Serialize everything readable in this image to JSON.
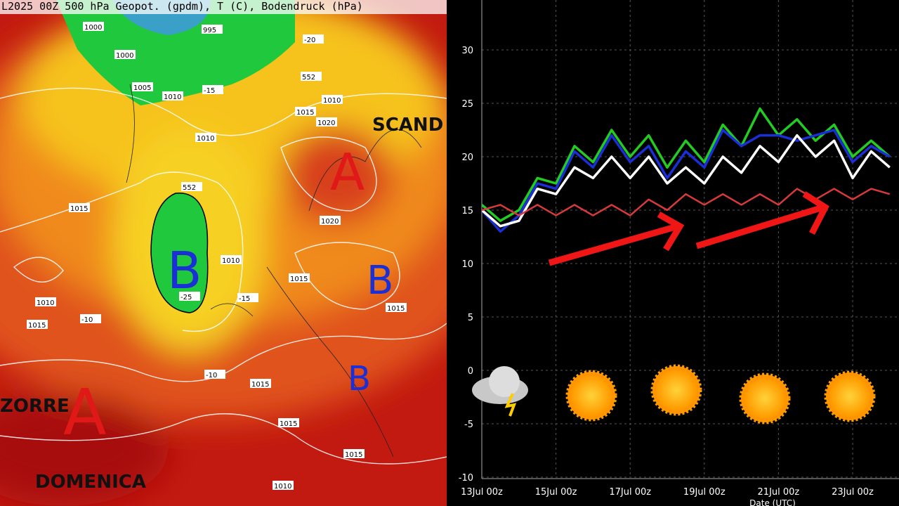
{
  "map": {
    "title": "L2025 00Z  500 hPa Geopot. (gpdm), T (C), Bodendruck (hPa)",
    "labels": [
      "SCAND",
      "A",
      "B",
      "B",
      "B",
      "A",
      "ZORRE",
      "DOMENICA"
    ],
    "isobars": [
      "1000",
      "995",
      "1000",
      "1005",
      "1010",
      "1010",
      "552",
      "1015",
      "1020",
      "1010",
      "552",
      "1015",
      "1010",
      "1015",
      "1010",
      "1015",
      "1020",
      "1015",
      "1015",
      "1015",
      "1015",
      "1010",
      "-20",
      "-15",
      "-25",
      "-10",
      "-15",
      "-10"
    ]
  },
  "chart_data": {
    "type": "line",
    "x_label": "Date (UTC)",
    "categories": [
      "13Jul 00z",
      null,
      null,
      null,
      "15Jul 00z",
      null,
      null,
      null,
      "17Jul 00z",
      null,
      null,
      null,
      "19Jul 00z",
      null,
      null,
      null,
      "21Jul 00z",
      null,
      null,
      null,
      "23Jul 00z",
      null,
      null
    ],
    "ylim": [
      -10,
      35
    ],
    "yticks": [
      -10,
      -5,
      0,
      5,
      10,
      15,
      20,
      25,
      30
    ],
    "grid": true,
    "series": [
      {
        "color": "#22cc22",
        "values": [
          15.5,
          14,
          15,
          18,
          17.5,
          21,
          19.5,
          22.5,
          20,
          22,
          19,
          21.5,
          19.5,
          23,
          21,
          24.5,
          22,
          23.5,
          21.5,
          23,
          20,
          21.5,
          20
        ]
      },
      {
        "color": "#1a2fd6",
        "values": [
          15,
          13,
          14.5,
          17.5,
          17,
          20.5,
          19,
          22,
          19.5,
          21,
          18,
          20.5,
          19,
          22.5,
          21,
          22,
          22,
          21.5,
          22,
          22.5,
          19.5,
          21,
          20
        ]
      },
      {
        "color": "#ffffff",
        "values": [
          15,
          13.5,
          14,
          17,
          16.5,
          19,
          18,
          20,
          18,
          20,
          17.5,
          19,
          17.5,
          20,
          18.5,
          21,
          19.5,
          22,
          20,
          21.5,
          18,
          20.5,
          19
        ]
      },
      {
        "color": "#d83a3a",
        "values": [
          15,
          15.5,
          14.5,
          15.5,
          14.5,
          15.5,
          14.5,
          15.5,
          14.5,
          16,
          15,
          16.5,
          15.5,
          16.5,
          15.5,
          16.5,
          15.5,
          17,
          16,
          17,
          16,
          17,
          16.5
        ]
      }
    ]
  }
}
